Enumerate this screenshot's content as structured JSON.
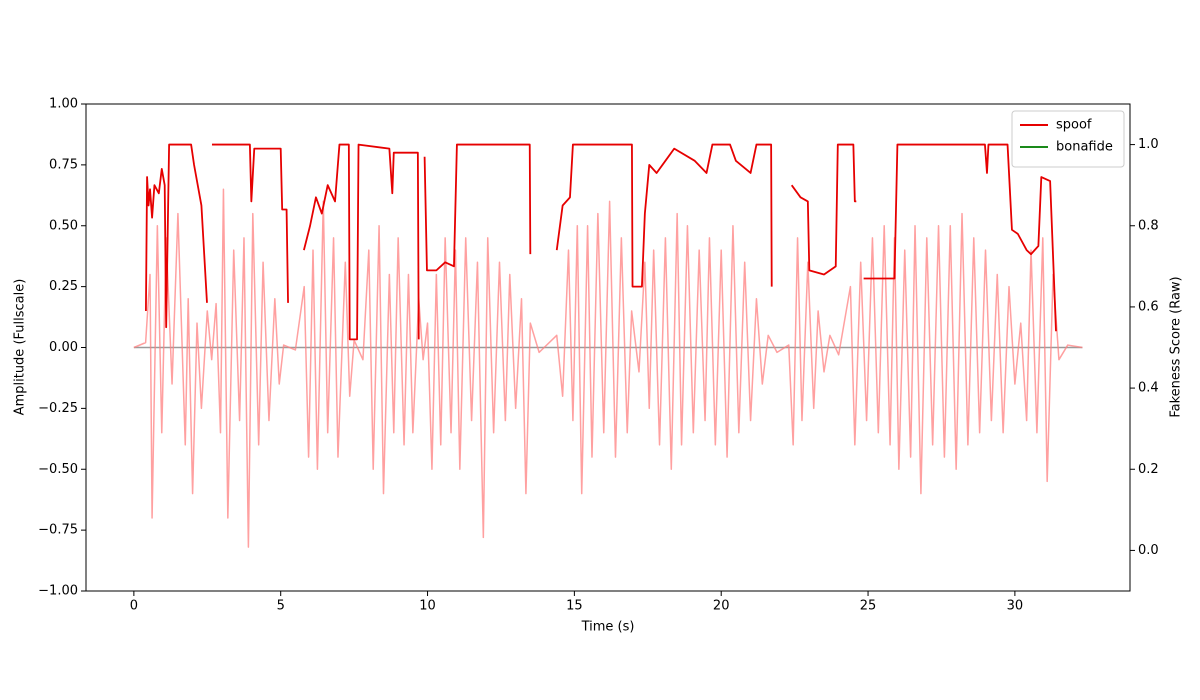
{
  "chart_data": {
    "type": "line",
    "xlabel": "Time (s)",
    "ylabel": "Amplitude (Fullscale)",
    "y2label": "Fakeness Score (Raw)",
    "xlim": [
      -1.63,
      33.92
    ],
    "ylim": [
      -1,
      1
    ],
    "y2lim": [
      -0.1,
      1.1
    ],
    "xticks": [
      0,
      5,
      10,
      15,
      20,
      25,
      30
    ],
    "yticks": [
      {
        "value": 1,
        "label": "1.00"
      },
      {
        "value": 0.75,
        "label": "0.75"
      },
      {
        "value": 0.5,
        "label": "0.50"
      },
      {
        "value": 0.25,
        "label": "0.25"
      },
      {
        "value": 0,
        "label": "0.00"
      },
      {
        "value": -0.25,
        "label": "−0.25"
      },
      {
        "value": -0.5,
        "label": "−0.50"
      },
      {
        "value": -0.75,
        "label": "−0.75"
      },
      {
        "value": -1,
        "label": "−1.00"
      }
    ],
    "y2ticks": [
      {
        "value": 0,
        "label": "0.0"
      },
      {
        "value": 0.2,
        "label": "0.2"
      },
      {
        "value": 0.4,
        "label": "0.4"
      },
      {
        "value": 0.6,
        "label": "0.6"
      },
      {
        "value": 0.8,
        "label": "0.8"
      },
      {
        "value": 1,
        "label": "1.0"
      }
    ],
    "legend": "upper right",
    "series": [
      {
        "color": "#9a9a9a",
        "axis": "y",
        "x": [
          0,
          32.3
        ],
        "values": [
          0,
          0
        ]
      },
      {
        "color": "#ff8080",
        "opacity": 0.75,
        "axis": "y",
        "x": [
          0,
          0.4,
          0.55,
          0.62,
          0.8,
          0.95,
          1.1,
          1.3,
          1.5,
          1.75,
          1.85,
          2.0,
          2.15,
          2.3,
          2.5,
          2.65,
          2.8,
          2.95,
          3.05,
          3.2,
          3.4,
          3.6,
          3.75,
          3.9,
          4.05,
          4.25,
          4.4,
          4.6,
          4.8,
          4.95,
          5.1,
          5.5,
          5.8,
          5.95,
          6.1,
          6.25,
          6.45,
          6.6,
          6.8,
          6.95,
          7.2,
          7.35,
          7.5,
          7.8,
          8.0,
          8.15,
          8.35,
          8.5,
          8.7,
          8.85,
          9.0,
          9.2,
          9.35,
          9.5,
          9.7,
          9.85,
          10.0,
          10.15,
          10.3,
          10.45,
          10.6,
          10.8,
          10.95,
          11.1,
          11.3,
          11.5,
          11.7,
          11.9,
          12.05,
          12.25,
          12.45,
          12.65,
          12.8,
          13.0,
          13.2,
          13.35,
          13.5,
          13.8,
          14.4,
          14.6,
          14.8,
          14.95,
          15.1,
          15.25,
          15.45,
          15.6,
          15.8,
          16.0,
          16.2,
          16.4,
          16.6,
          16.8,
          16.95,
          17.2,
          17.4,
          17.55,
          17.7,
          17.9,
          18.1,
          18.3,
          18.5,
          18.65,
          18.85,
          19.05,
          19.25,
          19.45,
          19.6,
          19.8,
          20.0,
          20.2,
          20.4,
          20.6,
          20.8,
          21.0,
          21.2,
          21.4,
          21.6,
          21.9,
          22.3,
          22.45,
          22.6,
          22.75,
          22.95,
          23.15,
          23.3,
          23.5,
          23.7,
          24.0,
          24.4,
          24.55,
          24.75,
          24.95,
          25.15,
          25.35,
          25.55,
          25.75,
          25.9,
          26.05,
          26.25,
          26.45,
          26.6,
          26.8,
          27.0,
          27.2,
          27.4,
          27.6,
          27.8,
          28.0,
          28.2,
          28.4,
          28.6,
          28.8,
          29.0,
          29.2,
          29.4,
          29.6,
          29.8,
          30.0,
          30.2,
          30.4,
          30.55,
          30.75,
          30.95,
          31.1,
          31.3,
          31.5,
          31.8,
          32.3
        ],
        "values": [
          0,
          0.02,
          0.3,
          -0.7,
          0.5,
          -0.35,
          0.45,
          -0.15,
          0.55,
          -0.4,
          0.2,
          -0.6,
          0.1,
          -0.25,
          0.15,
          -0.05,
          0.18,
          -0.35,
          0.65,
          -0.7,
          0.4,
          -0.3,
          0.45,
          -0.82,
          0.55,
          -0.4,
          0.35,
          -0.3,
          0.2,
          -0.15,
          0.01,
          -0.01,
          0.25,
          -0.45,
          0.4,
          -0.5,
          0.6,
          -0.35,
          0.45,
          -0.45,
          0.35,
          -0.2,
          0.03,
          -0.05,
          0.4,
          -0.5,
          0.5,
          -0.6,
          0.3,
          -0.35,
          0.45,
          -0.4,
          0.3,
          -0.35,
          0.2,
          -0.05,
          0.1,
          -0.5,
          0.3,
          -0.4,
          0.45,
          -0.35,
          0.4,
          -0.5,
          0.45,
          -0.3,
          0.35,
          -0.78,
          0.45,
          -0.35,
          0.35,
          -0.3,
          0.3,
          -0.25,
          0.2,
          -0.6,
          0.1,
          -0.02,
          0.05,
          -0.2,
          0.4,
          -0.3,
          0.5,
          -0.6,
          0.5,
          -0.45,
          0.55,
          -0.35,
          0.6,
          -0.45,
          0.45,
          -0.35,
          0.15,
          -0.1,
          0.35,
          -0.25,
          0.4,
          -0.4,
          0.45,
          -0.5,
          0.55,
          -0.4,
          0.5,
          -0.35,
          0.4,
          -0.3,
          0.45,
          -0.4,
          0.4,
          -0.45,
          0.5,
          -0.35,
          0.35,
          -0.3,
          0.2,
          -0.15,
          0.05,
          -0.02,
          0.01,
          -0.4,
          0.45,
          -0.3,
          0.35,
          -0.25,
          0.15,
          -0.1,
          0.05,
          -0.03,
          0.25,
          -0.4,
          0.35,
          -0.3,
          0.45,
          -0.35,
          0.5,
          -0.4,
          0.45,
          -0.5,
          0.4,
          -0.45,
          0.5,
          -0.6,
          0.45,
          -0.4,
          0.5,
          -0.45,
          0.5,
          -0.5,
          0.55,
          -0.4,
          0.45,
          -0.35,
          0.4,
          -0.3,
          0.3,
          -0.35,
          0.25,
          -0.15,
          0.1,
          -0.3,
          0.4,
          -0.35,
          0.45,
          -0.55,
          0.3,
          -0.05,
          0.01,
          0
        ]
      },
      {
        "name": "spoof",
        "color": "#e60000",
        "axis": "y2",
        "x": [
          0.41,
          0.45,
          0.5,
          0.55,
          0.62,
          0.7,
          0.85,
          0.95,
          1.05,
          1.1,
          1.2,
          1.95,
          2.05,
          2.3,
          2.49,
          2.58,
          2.66,
          3.95,
          4.0,
          4.1,
          5.0,
          5.05,
          5.2,
          5.25,
          5.5,
          5.79,
          6.0,
          6.2,
          6.4,
          6.6,
          6.85,
          7.0,
          7.32,
          7.35,
          7.6,
          7.65,
          8.7,
          8.8,
          8.85,
          9.67,
          9.7,
          9.8,
          9.9,
          9.98,
          10.3,
          10.6,
          10.9,
          11.0,
          13.48,
          13.5,
          13.7,
          14.4,
          14.6,
          14.85,
          14.95,
          16.96,
          16.98,
          17.3,
          17.4,
          17.55,
          17.8,
          18.1,
          18.4,
          19.1,
          19.5,
          19.7,
          20.3,
          20.5,
          21.0,
          21.2,
          21.7,
          21.72,
          21.9,
          22.4,
          22.7,
          22.95,
          23.0,
          23.5,
          23.9,
          23.97,
          24.5,
          24.55,
          24.6,
          24.7,
          24.85,
          25.9,
          26.0,
          28.98,
          29.05,
          29.1,
          29.75,
          29.9,
          30.1,
          30.4,
          30.55,
          30.8,
          30.9,
          31.2,
          31.4
        ],
        "values": [
          0.59,
          0.92,
          0.85,
          0.89,
          0.82,
          0.9,
          0.88,
          0.94,
          0.9,
          0.55,
          1.0,
          1.0,
          0.95,
          0.85,
          0.61,
          null,
          1.0,
          1.0,
          0.86,
          0.99,
          0.99,
          0.84,
          0.84,
          0.61,
          null,
          0.74,
          0.8,
          0.87,
          0.83,
          0.9,
          0.86,
          1.0,
          1.0,
          0.52,
          0.52,
          1.0,
          0.99,
          0.88,
          0.98,
          0.98,
          0.52,
          null,
          0.97,
          0.69,
          0.69,
          0.71,
          0.7,
          1.0,
          1.0,
          0.73,
          null,
          0.74,
          0.85,
          0.87,
          1.0,
          1.0,
          0.65,
          0.65,
          0.83,
          0.95,
          0.93,
          0.96,
          0.99,
          0.96,
          0.93,
          1.0,
          1.0,
          0.96,
          0.93,
          1.0,
          1.0,
          0.65,
          null,
          0.9,
          0.87,
          0.86,
          0.69,
          0.68,
          0.7,
          1.0,
          1.0,
          0.86,
          0.86,
          null,
          0.67,
          0.67,
          1.0,
          1.0,
          0.93,
          1.0,
          1.0,
          0.79,
          0.78,
          0.74,
          0.73,
          0.75,
          0.92,
          0.91,
          0.54
        ]
      },
      {
        "name": "bonafide",
        "color": "#1a8a1a",
        "axis": "y2",
        "x": [],
        "values": []
      }
    ]
  }
}
